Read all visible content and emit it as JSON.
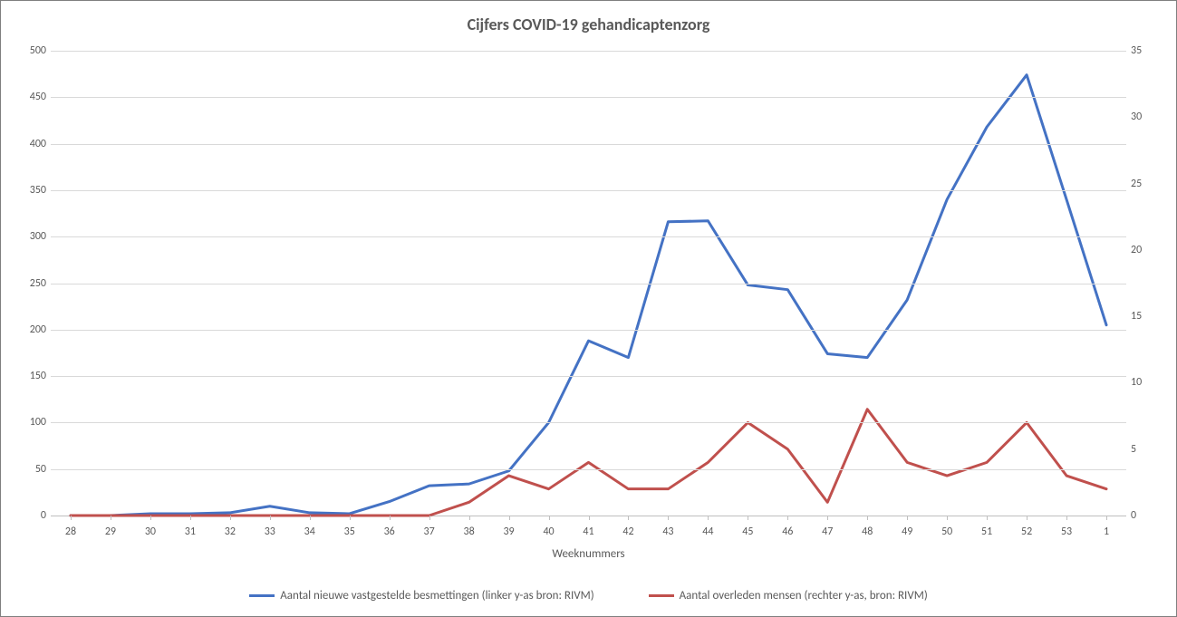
{
  "chart": {
    "type": "line",
    "title": "Cijfers COVID-19 gehandicaptenzorg",
    "title_fontsize": 18,
    "title_color": "#595959",
    "background_color": "#ffffff",
    "border_color": "#7f7f7f",
    "grid_color": "#d9d9d9",
    "axis_line_color": "#bfbfbf",
    "tick_label_color": "#595959",
    "tick_label_fontsize": 12,
    "x_axis_title": "Weeknummers",
    "x_axis_title_fontsize": 13,
    "categories": [
      "28",
      "29",
      "30",
      "31",
      "32",
      "33",
      "34",
      "35",
      "36",
      "37",
      "38",
      "39",
      "40",
      "41",
      "42",
      "43",
      "44",
      "45",
      "46",
      "47",
      "48",
      "49",
      "50",
      "51",
      "52",
      "53",
      "1"
    ],
    "y_left": {
      "min": 0,
      "max": 500,
      "ticks": [
        0,
        50,
        100,
        150,
        200,
        250,
        300,
        350,
        400,
        450,
        500
      ]
    },
    "y_right": {
      "min": 0,
      "max": 35,
      "ticks": [
        0,
        5,
        10,
        15,
        20,
        25,
        30,
        35
      ]
    },
    "series": [
      {
        "name": "Aantal nieuwe vastgestelde besmettingen  (linker y-as bron: RIVM)",
        "axis": "left",
        "color": "#4472c4",
        "line_width": 3,
        "values": [
          0,
          0,
          2,
          2,
          3,
          10,
          3,
          2,
          15,
          32,
          34,
          48,
          100,
          188,
          170,
          316,
          317,
          248,
          243,
          174,
          170,
          232,
          340,
          418,
          474,
          340,
          205
        ]
      },
      {
        "name": "Aantal overleden mensen  (rechter y-as, bron: RIVM)",
        "axis": "right",
        "color": "#c0504d",
        "line_width": 3,
        "values": [
          0,
          0,
          0,
          0,
          0,
          0,
          0,
          0,
          0,
          0,
          1,
          3,
          2,
          4,
          2,
          2,
          4,
          7,
          5,
          1,
          8,
          4,
          3,
          4,
          7,
          3,
          2
        ]
      }
    ],
    "legend": {
      "position": "bottom",
      "fontsize": 13,
      "color": "#595959"
    }
  }
}
